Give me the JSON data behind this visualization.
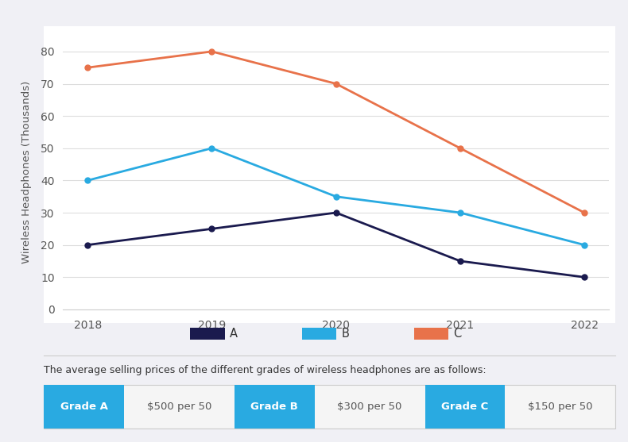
{
  "years": [
    2018,
    2019,
    2020,
    2021,
    2022
  ],
  "series_A": [
    20,
    25,
    30,
    15,
    10
  ],
  "series_B": [
    40,
    50,
    35,
    30,
    20
  ],
  "series_C": [
    75,
    80,
    70,
    50,
    30
  ],
  "color_A": "#1a1a4e",
  "color_B": "#29aae1",
  "color_C": "#e8724a",
  "ylabel": "Wireless Headphones (Thousands)",
  "ylim": [
    0,
    85
  ],
  "yticks": [
    0,
    10,
    20,
    30,
    40,
    50,
    60,
    70,
    80
  ],
  "bg_color": "#ffffff",
  "outer_bg": "#f0f0f5",
  "grid_color": "#dddddd",
  "footer_text": "The average selling prices of the different grades of wireless headphones are as follows:",
  "btn_labels": [
    "Grade A",
    "Grade B",
    "Grade C"
  ],
  "btn_prices": [
    "$500 per 50",
    "$300 per 50",
    "$150 per 50"
  ],
  "legend_labels": [
    "A",
    "B",
    "C"
  ],
  "button_color": "#29aae1",
  "button_text_color": "#ffffff",
  "price_text_color": "#555555",
  "marker_size": 5,
  "line_width": 2.0
}
